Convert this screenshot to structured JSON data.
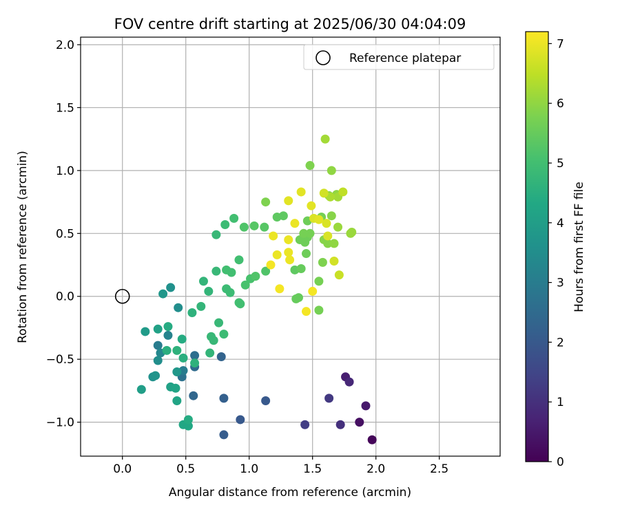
{
  "chart_data": {
    "type": "scatter",
    "title": "FOV centre drift starting at 2025/06/30 04:04:09",
    "xlabel": "Angular distance from reference (arcmin)",
    "ylabel": "Rotation from reference (arcmin)",
    "xlim": [
      -0.33,
      2.98
    ],
    "ylim": [
      -1.27,
      2.06
    ],
    "xticks": [
      "0.0",
      "0.5",
      "1.0",
      "1.5",
      "2.0",
      "2.5"
    ],
    "xtick_values": [
      0,
      0.5,
      1.0,
      1.5,
      2.0,
      2.5
    ],
    "yticks": [
      "−1.0",
      "−0.5",
      "0.0",
      "0.5",
      "1.0",
      "1.5",
      "2.0"
    ],
    "ytick_values": [
      -1.0,
      -0.5,
      0.0,
      0.5,
      1.0,
      1.5,
      2.0
    ],
    "grid": true,
    "legend": {
      "position": "top-right",
      "entries": [
        "Reference platepar"
      ]
    },
    "colorbar": {
      "label": "Hours from first FF file",
      "colormap": "viridis",
      "range": [
        0,
        7.2
      ],
      "ticks": [
        "0",
        "1",
        "2",
        "3",
        "4",
        "5",
        "6",
        "7"
      ],
      "tick_values": [
        0,
        1,
        2,
        3,
        4,
        5,
        6,
        7
      ]
    },
    "reference_point": {
      "x": 0.0,
      "y": 0.0
    },
    "points": [
      {
        "x": 1.97,
        "y": -1.14,
        "h": 0.1
      },
      {
        "x": 1.87,
        "y": -1.0,
        "h": 0.3
      },
      {
        "x": 1.92,
        "y": -0.87,
        "h": 0.5
      },
      {
        "x": 1.76,
        "y": -0.64,
        "h": 0.6
      },
      {
        "x": 1.79,
        "y": -0.68,
        "h": 0.8
      },
      {
        "x": 1.72,
        "y": -1.02,
        "h": 1.0
      },
      {
        "x": 1.63,
        "y": -0.81,
        "h": 1.2
      },
      {
        "x": 1.44,
        "y": -1.02,
        "h": 1.3
      },
      {
        "x": 1.13,
        "y": -0.83,
        "h": 2.0
      },
      {
        "x": 0.93,
        "y": -0.98,
        "h": 2.0
      },
      {
        "x": 0.8,
        "y": -1.1,
        "h": 2.1
      },
      {
        "x": 0.8,
        "y": -0.81,
        "h": 2.2
      },
      {
        "x": 0.78,
        "y": -0.48,
        "h": 2.3
      },
      {
        "x": 0.56,
        "y": -0.79,
        "h": 2.4
      },
      {
        "x": 0.57,
        "y": -0.56,
        "h": 2.5
      },
      {
        "x": 0.57,
        "y": -0.47,
        "h": 2.6
      },
      {
        "x": 0.47,
        "y": -0.64,
        "h": 2.7
      },
      {
        "x": 0.48,
        "y": -0.59,
        "h": 3.0
      },
      {
        "x": 0.28,
        "y": -0.39,
        "h": 3.0
      },
      {
        "x": 0.36,
        "y": -0.31,
        "h": 3.2
      },
      {
        "x": 0.3,
        "y": -0.45,
        "h": 3.3
      },
      {
        "x": 0.28,
        "y": -0.51,
        "h": 3.5
      },
      {
        "x": 0.24,
        "y": -0.64,
        "h": 3.6
      },
      {
        "x": 0.26,
        "y": -0.63,
        "h": 3.7
      },
      {
        "x": 0.43,
        "y": -0.6,
        "h": 3.8
      },
      {
        "x": 0.44,
        "y": -0.09,
        "h": 3.5
      },
      {
        "x": 0.38,
        "y": 0.07,
        "h": 3.6
      },
      {
        "x": 0.32,
        "y": 0.02,
        "h": 3.8
      },
      {
        "x": 0.18,
        "y": -0.28,
        "h": 3.9
      },
      {
        "x": 0.15,
        "y": -0.74,
        "h": 4.0
      },
      {
        "x": 0.28,
        "y": -0.26,
        "h": 4.1
      },
      {
        "x": 0.38,
        "y": -0.72,
        "h": 4.1
      },
      {
        "x": 0.43,
        "y": -0.83,
        "h": 4.2
      },
      {
        "x": 0.42,
        "y": -0.73,
        "h": 4.2
      },
      {
        "x": 0.48,
        "y": -1.02,
        "h": 4.3
      },
      {
        "x": 0.52,
        "y": -1.03,
        "h": 4.3
      },
      {
        "x": 0.52,
        "y": -0.98,
        "h": 4.4
      },
      {
        "x": 0.36,
        "y": -0.24,
        "h": 4.4
      },
      {
        "x": 0.47,
        "y": -0.34,
        "h": 4.4
      },
      {
        "x": 0.48,
        "y": -0.49,
        "h": 4.5
      },
      {
        "x": 0.35,
        "y": -0.43,
        "h": 4.5
      },
      {
        "x": 0.43,
        "y": -0.43,
        "h": 4.6
      },
      {
        "x": 0.57,
        "y": -0.53,
        "h": 4.6
      },
      {
        "x": 0.55,
        "y": -0.13,
        "h": 4.6
      },
      {
        "x": 0.62,
        "y": -0.08,
        "h": 4.7
      },
      {
        "x": 0.68,
        "y": 0.04,
        "h": 4.7
      },
      {
        "x": 0.64,
        "y": 0.12,
        "h": 4.7
      },
      {
        "x": 0.69,
        "y": -0.45,
        "h": 4.7
      },
      {
        "x": 0.7,
        "y": -0.32,
        "h": 4.8
      },
      {
        "x": 0.72,
        "y": -0.35,
        "h": 4.8
      },
      {
        "x": 0.76,
        "y": -0.21,
        "h": 4.8
      },
      {
        "x": 0.8,
        "y": -0.3,
        "h": 4.9
      },
      {
        "x": 0.74,
        "y": 0.2,
        "h": 4.8
      },
      {
        "x": 0.82,
        "y": 0.06,
        "h": 4.9
      },
      {
        "x": 0.85,
        "y": 0.03,
        "h": 4.9
      },
      {
        "x": 0.82,
        "y": 0.21,
        "h": 5.0
      },
      {
        "x": 0.86,
        "y": 0.19,
        "h": 5.0
      },
      {
        "x": 0.92,
        "y": -0.05,
        "h": 5.0
      },
      {
        "x": 0.93,
        "y": -0.06,
        "h": 5.0
      },
      {
        "x": 0.92,
        "y": 0.29,
        "h": 5.0
      },
      {
        "x": 0.74,
        "y": 0.49,
        "h": 4.8
      },
      {
        "x": 0.81,
        "y": 0.57,
        "h": 4.9
      },
      {
        "x": 0.88,
        "y": 0.62,
        "h": 5.0
      },
      {
        "x": 0.97,
        "y": 0.09,
        "h": 5.1
      },
      {
        "x": 1.01,
        "y": 0.14,
        "h": 5.1
      },
      {
        "x": 1.05,
        "y": 0.16,
        "h": 5.2
      },
      {
        "x": 1.13,
        "y": 0.2,
        "h": 5.2
      },
      {
        "x": 0.96,
        "y": 0.55,
        "h": 5.2
      },
      {
        "x": 1.04,
        "y": 0.56,
        "h": 5.3
      },
      {
        "x": 1.12,
        "y": 0.55,
        "h": 5.3
      },
      {
        "x": 1.22,
        "y": 0.63,
        "h": 5.4
      },
      {
        "x": 1.27,
        "y": 0.64,
        "h": 5.4
      },
      {
        "x": 1.36,
        "y": 0.21,
        "h": 5.4
      },
      {
        "x": 1.41,
        "y": 0.22,
        "h": 5.5
      },
      {
        "x": 1.37,
        "y": -0.02,
        "h": 5.5
      },
      {
        "x": 1.39,
        "y": -0.01,
        "h": 5.5
      },
      {
        "x": 1.45,
        "y": 0.34,
        "h": 5.6
      },
      {
        "x": 1.44,
        "y": 0.43,
        "h": 5.6
      },
      {
        "x": 1.46,
        "y": 0.47,
        "h": 5.6
      },
      {
        "x": 1.4,
        "y": 0.45,
        "h": 5.6
      },
      {
        "x": 1.46,
        "y": 0.6,
        "h": 5.6
      },
      {
        "x": 1.48,
        "y": 0.5,
        "h": 5.7
      },
      {
        "x": 1.43,
        "y": 0.5,
        "h": 5.7
      },
      {
        "x": 1.55,
        "y": 0.12,
        "h": 5.7
      },
      {
        "x": 1.55,
        "y": -0.11,
        "h": 5.7
      },
      {
        "x": 1.57,
        "y": 0.63,
        "h": 5.7
      },
      {
        "x": 1.13,
        "y": 0.75,
        "h": 5.8
      },
      {
        "x": 1.48,
        "y": 1.04,
        "h": 5.8
      },
      {
        "x": 1.58,
        "y": 0.27,
        "h": 5.8
      },
      {
        "x": 1.59,
        "y": 0.45,
        "h": 5.9
      },
      {
        "x": 1.62,
        "y": 0.42,
        "h": 5.9
      },
      {
        "x": 1.63,
        "y": 0.8,
        "h": 5.9
      },
      {
        "x": 1.65,
        "y": 0.64,
        "h": 5.9
      },
      {
        "x": 1.67,
        "y": 0.42,
        "h": 6.0
      },
      {
        "x": 1.65,
        "y": 1.0,
        "h": 6.0
      },
      {
        "x": 1.69,
        "y": 0.81,
        "h": 6.0
      },
      {
        "x": 1.7,
        "y": 0.55,
        "h": 6.1
      },
      {
        "x": 1.8,
        "y": 0.5,
        "h": 6.1
      },
      {
        "x": 1.81,
        "y": 0.51,
        "h": 6.1
      },
      {
        "x": 1.6,
        "y": 1.25,
        "h": 6.2
      },
      {
        "x": 1.7,
        "y": 0.79,
        "h": 6.2
      },
      {
        "x": 1.64,
        "y": 0.79,
        "h": 6.3
      },
      {
        "x": 1.74,
        "y": 0.83,
        "h": 6.5
      },
      {
        "x": 1.71,
        "y": 0.17,
        "h": 6.6
      },
      {
        "x": 1.67,
        "y": 0.28,
        "h": 6.7
      },
      {
        "x": 1.62,
        "y": 0.48,
        "h": 6.8
      },
      {
        "x": 1.61,
        "y": 0.58,
        "h": 6.8
      },
      {
        "x": 1.59,
        "y": 0.82,
        "h": 6.7
      },
      {
        "x": 1.51,
        "y": 0.62,
        "h": 6.8
      },
      {
        "x": 1.55,
        "y": 0.61,
        "h": 6.9
      },
      {
        "x": 1.49,
        "y": 0.72,
        "h": 6.9
      },
      {
        "x": 1.41,
        "y": 0.83,
        "h": 6.9
      },
      {
        "x": 1.31,
        "y": 0.76,
        "h": 6.9
      },
      {
        "x": 1.19,
        "y": 0.48,
        "h": 7.0
      },
      {
        "x": 1.36,
        "y": 0.58,
        "h": 7.0
      },
      {
        "x": 1.31,
        "y": 0.45,
        "h": 7.0
      },
      {
        "x": 1.31,
        "y": 0.35,
        "h": 7.0
      },
      {
        "x": 1.32,
        "y": 0.29,
        "h": 7.0
      },
      {
        "x": 1.22,
        "y": 0.33,
        "h": 7.0
      },
      {
        "x": 1.17,
        "y": 0.25,
        "h": 7.1
      },
      {
        "x": 1.24,
        "y": 0.06,
        "h": 7.1
      },
      {
        "x": 1.5,
        "y": 0.04,
        "h": 7.1
      },
      {
        "x": 1.45,
        "y": -0.12,
        "h": 7.1
      }
    ]
  }
}
